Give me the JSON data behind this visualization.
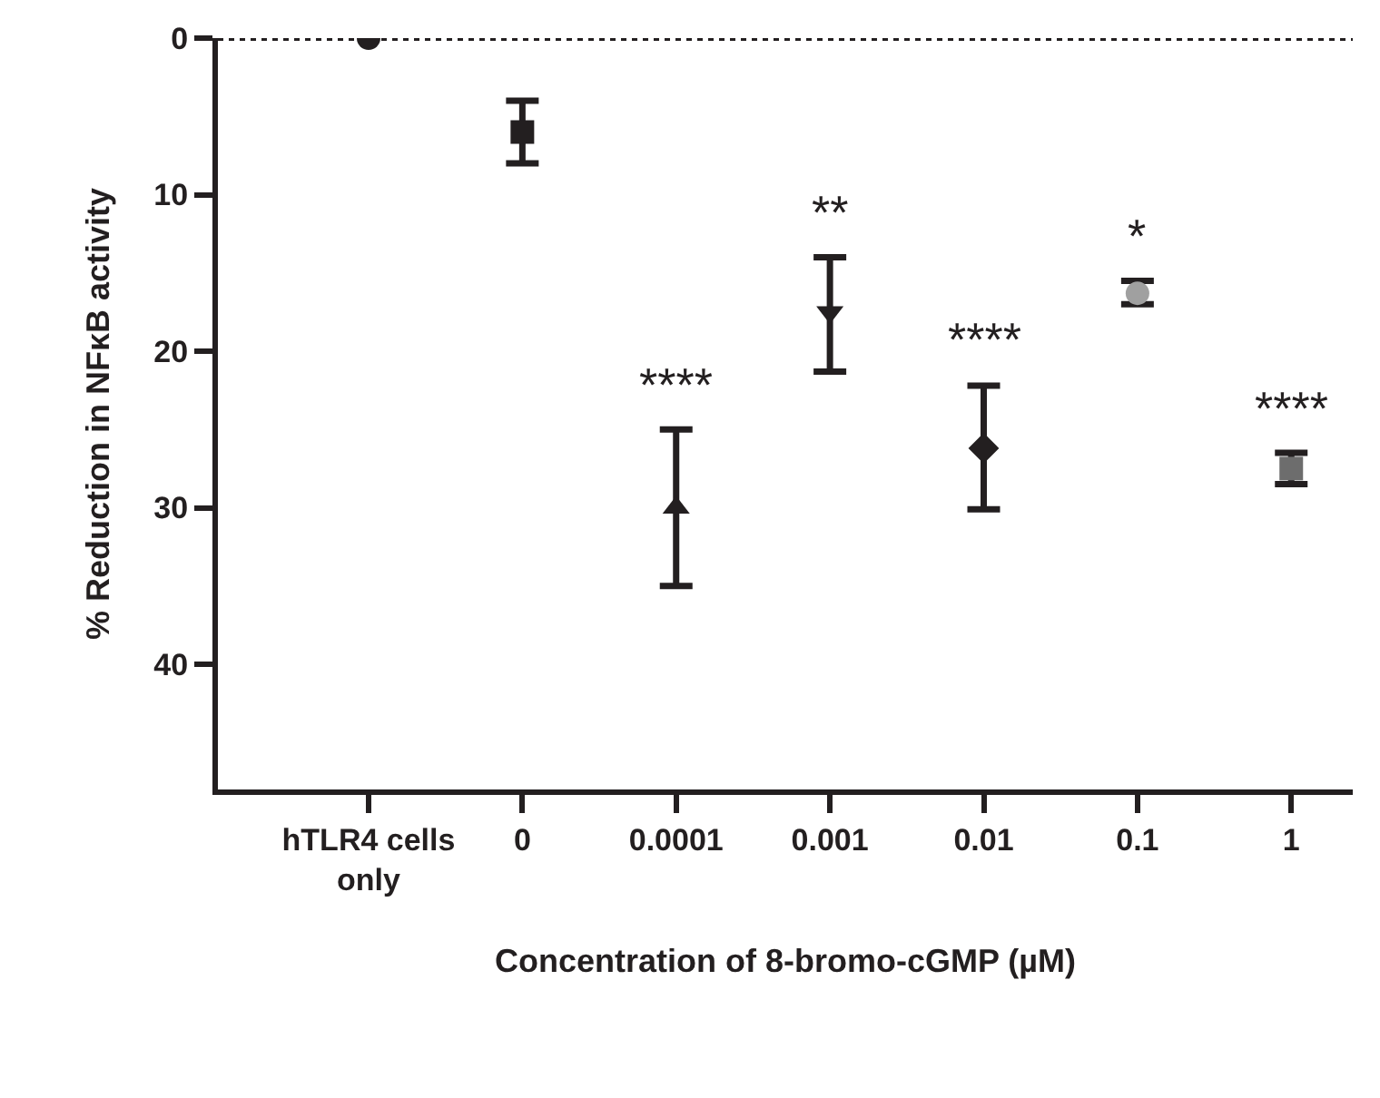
{
  "chart_data": {
    "type": "scatter",
    "ylabel": "% Reduction in NFκB activity",
    "xlabel": "Concentration of 8-bromo-cGMP (µM)",
    "categories": [
      "hTLR4 cells only",
      "0",
      "0.0001",
      "0.001",
      "0.01",
      "0.1",
      "1"
    ],
    "ylim": [
      48,
      0
    ],
    "yticks": [
      0,
      10,
      20,
      30,
      40
    ],
    "grid": false,
    "series": [
      {
        "x": [
          "hTLR4 cells only"
        ],
        "values": [
          0
        ],
        "marker": "circle",
        "color": "#231f20"
      },
      {
        "x": [
          "0"
        ],
        "values": [
          6
        ],
        "errors": [
          [
            4,
            8
          ]
        ],
        "marker": "square",
        "color": "#231f20"
      },
      {
        "x": [
          "0.0001"
        ],
        "values": [
          30
        ],
        "errors": [
          [
            25,
            35
          ]
        ],
        "marker": "triangle",
        "color": "#231f20"
      },
      {
        "x": [
          "0.001"
        ],
        "values": [
          17.5
        ],
        "errors": [
          [
            14,
            21.3
          ]
        ],
        "marker": "triangle-down",
        "color": "#231f20"
      },
      {
        "x": [
          "0.01"
        ],
        "values": [
          26.2
        ],
        "errors": [
          [
            22.2,
            30.1
          ]
        ],
        "marker": "diamond",
        "color": "#231f20"
      },
      {
        "x": [
          "0.1"
        ],
        "values": [
          16.3
        ],
        "errors": [
          [
            15.5,
            17
          ]
        ],
        "marker": "circle",
        "color": "#a0a0a0"
      },
      {
        "x": [
          "1"
        ],
        "values": [
          27.5
        ],
        "errors": [
          [
            26.5,
            28.5
          ]
        ],
        "marker": "square",
        "color": "#6d6d6d"
      }
    ],
    "ref_lines": [
      {
        "axis": "y",
        "value": 0,
        "line_style": "dotted",
        "color": "#231f20"
      }
    ],
    "annotations": [
      {
        "text": "****",
        "x": "0.0001",
        "y": 25
      },
      {
        "text": "**",
        "x": "0.001",
        "y": 14
      },
      {
        "text": "****",
        "x": "0.01",
        "y": 22.2
      },
      {
        "text": "*",
        "x": "0.1",
        "y": 15.5
      },
      {
        "text": "****",
        "x": "1",
        "y": 26.5
      }
    ]
  }
}
